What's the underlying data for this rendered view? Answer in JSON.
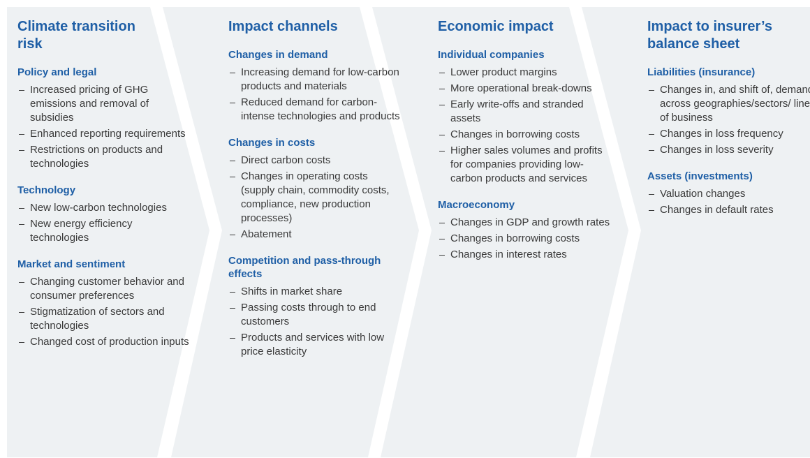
{
  "columns": [
    {
      "title": "Climate transition risk",
      "sections": [
        {
          "heading": "Policy and legal",
          "items": [
            "Increased pricing of GHG emissions and removal of subsidies",
            "Enhanced reporting requirements",
            "Restrictions on products and technologies"
          ]
        },
        {
          "heading": "Technology",
          "items": [
            "New low-carbon technologies",
            "New energy efficiency technologies"
          ]
        },
        {
          "heading": "Market and sentiment",
          "items": [
            "Changing customer behavior and consumer preferences",
            "Stigmatization of sectors and technologies",
            "Changed cost of production inputs"
          ]
        }
      ]
    },
    {
      "title": "Impact channels",
      "sections": [
        {
          "heading": "Changes in demand",
          "items": [
            "Increasing demand for low-carbon products and materials",
            "Reduced demand for carbon-intense technologies and products"
          ]
        },
        {
          "heading": "Changes in costs",
          "items": [
            "Direct carbon costs",
            "Changes in operating costs (supply chain, commodity costs, compliance, new production processes)",
            "Abatement"
          ]
        },
        {
          "heading": "Competition and pass-through effects",
          "items": [
            "Shifts in market share",
            "Passing costs through to end customers",
            "Products and services with low price elasticity"
          ]
        }
      ]
    },
    {
      "title": "Economic impact",
      "sections": [
        {
          "heading": "Individual companies",
          "items": [
            "Lower product margins",
            "More operational break-downs",
            "Early write-offs and stranded assets",
            "Changes in borrowing costs",
            "Higher sales volumes and profits for companies providing low-carbon products and services"
          ]
        },
        {
          "heading": "Macroeconomy",
          "items": [
            "Changes in GDP and growth rates",
            "Changes in borrowing costs",
            "Changes in interest rates"
          ]
        }
      ]
    },
    {
      "title": "Impact to insurer’s balance sheet",
      "sections": [
        {
          "heading": "Liabilities (insurance)",
          "items": [
            "Changes in, and shift of, demand across geographies/sectors/ lines of business",
            "Changes in loss frequency",
            "Changes in loss severity"
          ]
        },
        {
          "heading": "Assets (investments)",
          "items": [
            "Valuation changes",
            "Changes in default rates"
          ]
        }
      ]
    }
  ]
}
